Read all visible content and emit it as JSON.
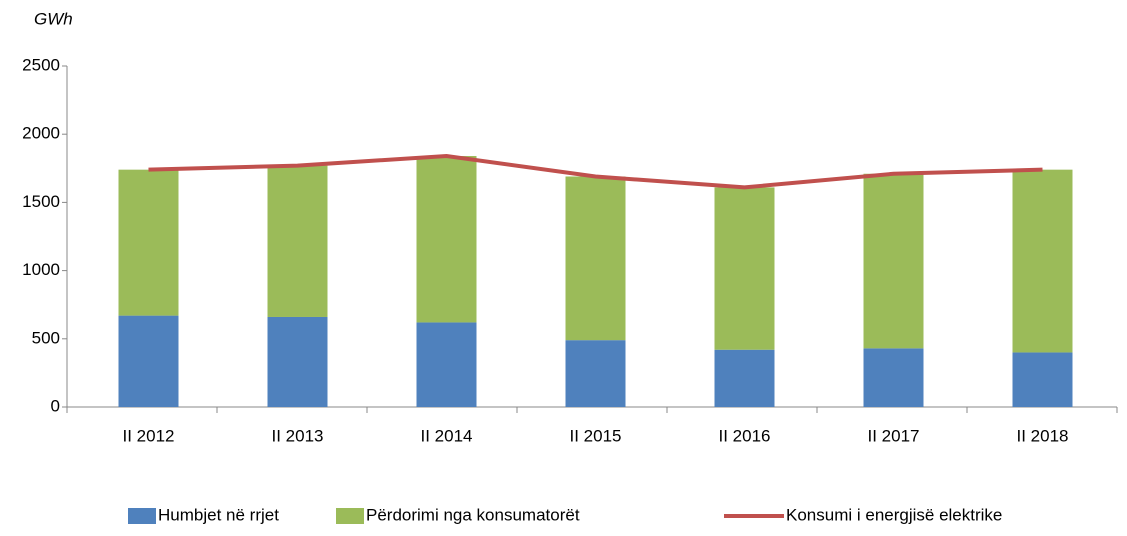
{
  "chart_data": {
    "type": "stacked_bar_line",
    "y_label": "GWh",
    "categories": [
      "II 2012",
      "II 2013",
      "II 2014",
      "II 2015",
      "II 2016",
      "II 2017",
      "II 2018"
    ],
    "series": [
      {
        "name": "Humbjet në rrjet",
        "color": "#4f81bd",
        "kind": "bar",
        "values": [
          670,
          660,
          620,
          490,
          420,
          430,
          400
        ]
      },
      {
        "name": "Përdorimi nga konsumatorët",
        "color": "#9bbb59",
        "kind": "bar",
        "values": [
          1070,
          1110,
          1220,
          1200,
          1190,
          1280,
          1340
        ]
      },
      {
        "name": "Konsumi i energjisë elektrike",
        "color": "#c0504d",
        "kind": "line",
        "values": [
          1740,
          1770,
          1840,
          1690,
          1610,
          1710,
          1740
        ]
      }
    ],
    "ylim": [
      0,
      2500
    ],
    "yticks": [
      0,
      500,
      1000,
      1500,
      2000,
      2500
    ]
  }
}
